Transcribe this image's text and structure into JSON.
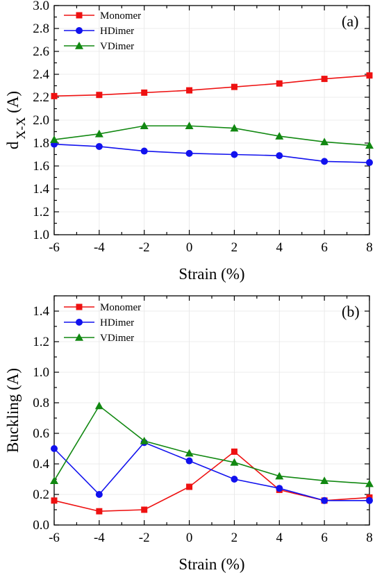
{
  "chart_data": [
    {
      "type": "line",
      "panel_label": "(a)",
      "xlabel": "Strain (%)",
      "ylabel_main": "d",
      "ylabel_sub": "X-X",
      "ylabel_unit": " (A)",
      "xlim": [
        -6,
        8
      ],
      "ylim": [
        1.0,
        3.0
      ],
      "x_ticks": [
        "-6",
        "-4",
        "-2",
        "0",
        "2",
        "4",
        "6",
        "8"
      ],
      "y_ticks": [
        "1.0",
        "1.2",
        "1.4",
        "1.6",
        "1.8",
        "2.0",
        "2.2",
        "2.4",
        "2.6",
        "2.8",
        "3.0"
      ],
      "grid": true,
      "legend_position": "top-left",
      "x": [
        -6,
        -4,
        -2,
        0,
        2,
        4,
        6,
        8
      ],
      "series": [
        {
          "name": "Monomer",
          "color": "#ee1111",
          "marker": "square",
          "values": [
            2.21,
            2.22,
            2.24,
            2.26,
            2.29,
            2.32,
            2.36,
            2.39
          ]
        },
        {
          "name": "HDimer",
          "color": "#1111ee",
          "marker": "circle",
          "values": [
            1.79,
            1.77,
            1.73,
            1.71,
            1.7,
            1.69,
            1.64,
            1.63
          ]
        },
        {
          "name": "VDimer",
          "color": "#118811",
          "marker": "triangle",
          "values": [
            1.83,
            1.88,
            1.95,
            1.95,
            1.93,
            1.86,
            1.81,
            1.78
          ]
        }
      ]
    },
    {
      "type": "line",
      "panel_label": "(b)",
      "xlabel": "Strain (%)",
      "ylabel_main": "Buckling (A)",
      "ylabel_sub": "",
      "ylabel_unit": "",
      "xlim": [
        -6,
        8
      ],
      "ylim": [
        0.0,
        1.5
      ],
      "x_ticks": [
        "-6",
        "-4",
        "-2",
        "0",
        "2",
        "4",
        "6",
        "8"
      ],
      "y_ticks": [
        "0.0",
        "0.2",
        "0.4",
        "0.6",
        "0.8",
        "1.0",
        "1.2",
        "1.4"
      ],
      "grid": true,
      "legend_position": "top-left",
      "x": [
        -6,
        -4,
        -2,
        0,
        2,
        4,
        6,
        8
      ],
      "series": [
        {
          "name": "Monomer",
          "color": "#ee1111",
          "marker": "square",
          "values": [
            0.16,
            0.09,
            0.1,
            0.25,
            0.48,
            0.23,
            0.16,
            0.18
          ]
        },
        {
          "name": "HDimer",
          "color": "#1111ee",
          "marker": "circle",
          "values": [
            0.5,
            0.2,
            0.54,
            0.42,
            0.3,
            0.24,
            0.16,
            0.16
          ]
        },
        {
          "name": "VDimer",
          "color": "#118811",
          "marker": "triangle",
          "values": [
            0.29,
            0.78,
            0.55,
            0.47,
            0.41,
            0.32,
            0.29,
            0.27
          ]
        }
      ]
    }
  ]
}
